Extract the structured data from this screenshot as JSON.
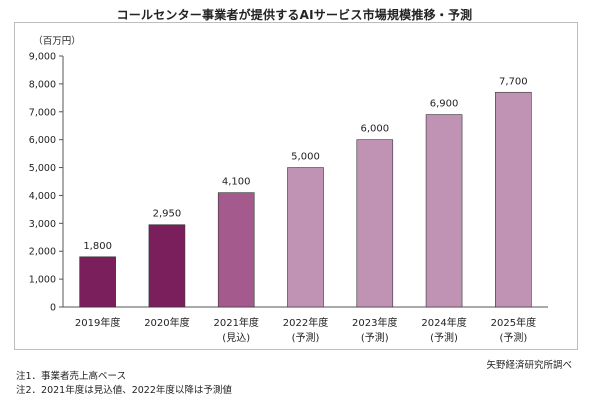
{
  "title": "コールセンター事業者が提供するAIサービス市場規模推移・予測",
  "source": "矢野経済研究所調べ",
  "notes": [
    "注1．事業者売上高ベース",
    "注2．2021年度は見込値、2022年度以降は予測値"
  ],
  "chart_data": {
    "type": "bar",
    "unit_label": "（百万円）",
    "categories": [
      "2019年度",
      "2020年度",
      "2021年度",
      "2022年度",
      "2023年度",
      "2024年度",
      "2025年度"
    ],
    "sublabels": [
      "",
      "",
      "(見込)",
      "(予測)",
      "(予測)",
      "(予測)",
      "(予測)"
    ],
    "values": [
      1800,
      2950,
      4100,
      5000,
      6000,
      6900,
      7700
    ],
    "value_labels": [
      "1,800",
      "2,950",
      "4,100",
      "5,000",
      "6,000",
      "6,900",
      "7,700"
    ],
    "bar_colors": [
      "#7b1f5c",
      "#7b1f5c",
      "#a45a8c",
      "#c092b4",
      "#c092b4",
      "#c092b4",
      "#c092b4"
    ],
    "ylim": [
      0,
      9000
    ],
    "yticks": [
      0,
      1000,
      2000,
      3000,
      4000,
      5000,
      6000,
      7000,
      8000,
      9000
    ],
    "ytick_labels": [
      "0",
      "1,000",
      "2,000",
      "3,000",
      "4,000",
      "5,000",
      "6,000",
      "7,000",
      "8,000",
      "9,000"
    ],
    "grid": false,
    "legend": "none"
  }
}
